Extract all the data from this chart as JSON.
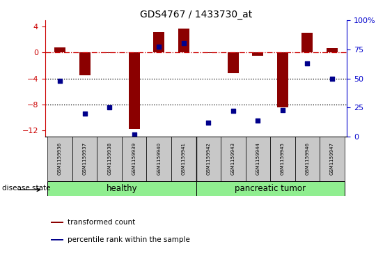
{
  "title": "GDS4767 / 1433730_at",
  "samples": [
    "GSM1159936",
    "GSM1159937",
    "GSM1159938",
    "GSM1159939",
    "GSM1159940",
    "GSM1159941",
    "GSM1159942",
    "GSM1159943",
    "GSM1159944",
    "GSM1159945",
    "GSM1159946",
    "GSM1159947"
  ],
  "transformed_count": [
    0.8,
    -3.5,
    -0.1,
    -11.8,
    3.2,
    3.7,
    -0.1,
    -3.2,
    -0.5,
    -8.5,
    3.1,
    0.7
  ],
  "percentile_rank": [
    48,
    20,
    25,
    2,
    77,
    80,
    12,
    22,
    14,
    23,
    63,
    50
  ],
  "ylim_left": [
    -13,
    5
  ],
  "ylim_right": [
    0,
    100
  ],
  "bar_color": "#8B0000",
  "dot_color": "#00008B",
  "hline_color": "#CC0000",
  "dotted_line_color": "#000000",
  "tick_color_left": "#CC0000",
  "tick_color_right": "#0000CC",
  "right_yticks": [
    0,
    25,
    50,
    75,
    100
  ],
  "right_yticklabels": [
    "0",
    "25",
    "50",
    "75",
    "100%"
  ],
  "left_yticks": [
    -12,
    -8,
    -4,
    0,
    4
  ],
  "healthy_color": "#90EE90",
  "label_box_color": "#C8C8C8",
  "disease_state_label": "disease state",
  "healthy_label": "healthy",
  "tumor_label": "pancreatic tumor",
  "legend1": "transformed count",
  "legend2": "percentile rank within the sample",
  "healthy_count": 6,
  "tumor_count": 6
}
